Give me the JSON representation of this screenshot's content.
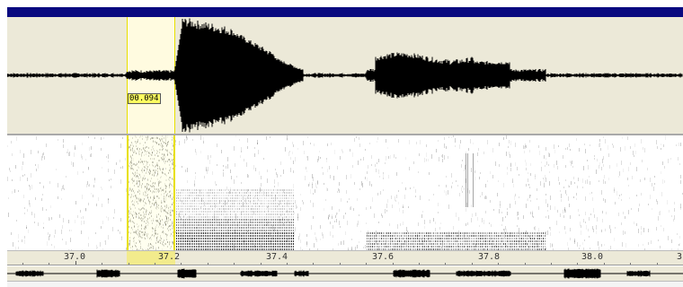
{
  "selection": {
    "duration_label": "00.094"
  },
  "timeline": {
    "labels": [
      "37.0",
      "37.2",
      "37.4",
      "37.6",
      "37.8",
      "38.0",
      "3"
    ]
  },
  "colors": {
    "title_bar": "#0a0a80",
    "panel_bg": "#ece9d8",
    "selection_border": "#e8e000",
    "waveform": "#000000"
  }
}
